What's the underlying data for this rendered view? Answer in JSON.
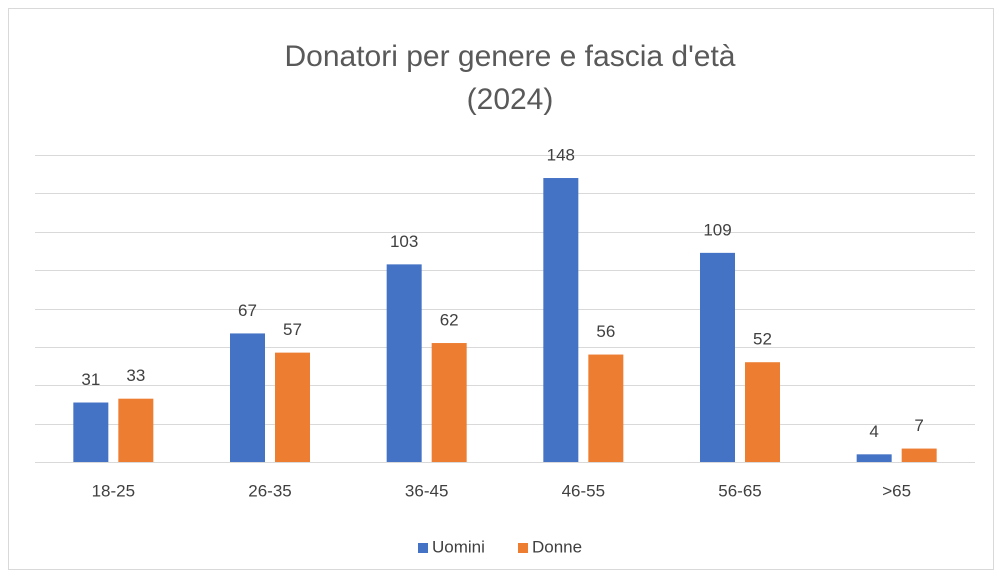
{
  "chart_data": {
    "type": "bar",
    "title": "Donatori per genere e fascia d'età",
    "subtitle": "(2024)",
    "categories": [
      "18-25",
      "26-35",
      "36-45",
      "46-55",
      "56-65",
      ">65"
    ],
    "series": [
      {
        "name": "Uomini",
        "color": "#4472c4",
        "values": [
          31,
          67,
          103,
          148,
          109,
          4
        ]
      },
      {
        "name": "Donne",
        "color": "#ed7d31",
        "values": [
          33,
          57,
          62,
          56,
          52,
          7
        ]
      }
    ],
    "ylim": [
      0,
      160
    ],
    "yticks": [
      0,
      20,
      40,
      60,
      80,
      100,
      120,
      140,
      160
    ],
    "grid": true,
    "legend": "bottom"
  }
}
